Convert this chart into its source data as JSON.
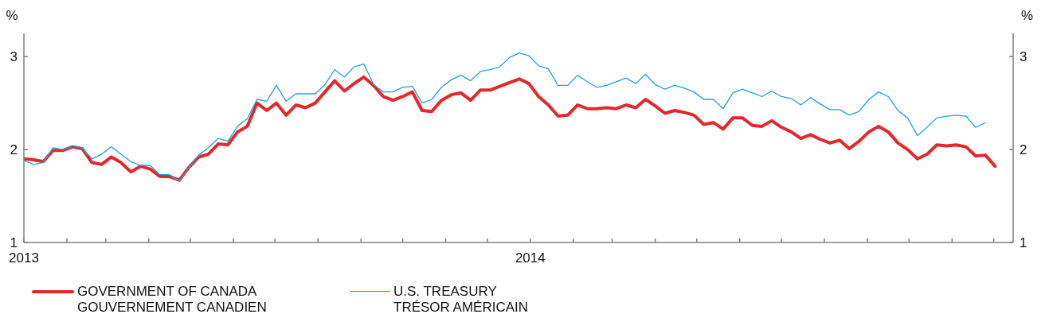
{
  "chart_data": {
    "type": "line",
    "ylabel": "%",
    "y2label": "%",
    "x": [
      "2013-01-01",
      "2013-01-08",
      "2013-01-15",
      "2013-01-22",
      "2013-01-29",
      "2013-02-05",
      "2013-02-12",
      "2013-02-19",
      "2013-02-26",
      "2013-03-05",
      "2013-03-12",
      "2013-03-19",
      "2013-03-26",
      "2013-04-02",
      "2013-04-09",
      "2013-04-16",
      "2013-04-23",
      "2013-04-30",
      "2013-05-07",
      "2013-05-14",
      "2013-05-21",
      "2013-05-28",
      "2013-06-04",
      "2013-06-11",
      "2013-06-18",
      "2013-06-25",
      "2013-07-02",
      "2013-07-09",
      "2013-07-16",
      "2013-07-23",
      "2013-07-30",
      "2013-08-06",
      "2013-08-13",
      "2013-08-20",
      "2013-08-27",
      "2013-09-03",
      "2013-09-10",
      "2013-09-17",
      "2013-09-24",
      "2013-10-01",
      "2013-10-08",
      "2013-10-15",
      "2013-10-22",
      "2013-10-29",
      "2013-11-05",
      "2013-11-12",
      "2013-11-19",
      "2013-11-26",
      "2013-12-03",
      "2013-12-10",
      "2013-12-17",
      "2013-12-24",
      "2013-12-31",
      "2014-01-07",
      "2014-01-14",
      "2014-01-21",
      "2014-01-28",
      "2014-02-04",
      "2014-02-11",
      "2014-02-18",
      "2014-02-25",
      "2014-03-04",
      "2014-03-11",
      "2014-03-18",
      "2014-03-25",
      "2014-04-01",
      "2014-04-08",
      "2014-04-15",
      "2014-04-22",
      "2014-04-29",
      "2014-05-06",
      "2014-05-13",
      "2014-05-20",
      "2014-05-27",
      "2014-06-03",
      "2014-06-10",
      "2014-06-17",
      "2014-06-24",
      "2014-07-01",
      "2014-07-08",
      "2014-07-15",
      "2014-07-22",
      "2014-07-29",
      "2014-08-05",
      "2014-08-12",
      "2014-08-19",
      "2014-08-26",
      "2014-09-02",
      "2014-09-09",
      "2014-09-16",
      "2014-09-23",
      "2014-09-30",
      "2014-10-07",
      "2014-10-14",
      "2014-10-21",
      "2014-10-28",
      "2014-11-04",
      "2014-11-11",
      "2014-11-18",
      "2014-11-25",
      "2014-12-02"
    ],
    "series": [
      {
        "name": "GOVERNMENT OF CANADA\nGOUVERNEMENT CANADIEN",
        "color": "#e3272b",
        "values": [
          1.9,
          1.89,
          1.87,
          1.99,
          1.99,
          2.03,
          2.01,
          1.86,
          1.84,
          1.92,
          1.86,
          1.76,
          1.82,
          1.79,
          1.71,
          1.71,
          1.67,
          1.81,
          1.92,
          1.95,
          2.06,
          2.05,
          2.19,
          2.25,
          2.5,
          2.42,
          2.5,
          2.37,
          2.48,
          2.45,
          2.5,
          2.62,
          2.74,
          2.63,
          2.71,
          2.78,
          2.69,
          2.57,
          2.53,
          2.57,
          2.62,
          2.42,
          2.41,
          2.53,
          2.59,
          2.61,
          2.53,
          2.64,
          2.64,
          2.68,
          2.72,
          2.76,
          2.71,
          2.57,
          2.48,
          2.36,
          2.37,
          2.48,
          2.44,
          2.44,
          2.45,
          2.44,
          2.48,
          2.45,
          2.54,
          2.47,
          2.39,
          2.42,
          2.4,
          2.37,
          2.27,
          2.29,
          2.22,
          2.34,
          2.34,
          2.26,
          2.25,
          2.31,
          2.24,
          2.19,
          2.12,
          2.16,
          2.11,
          2.07,
          2.1,
          2.01,
          2.09,
          2.19,
          2.25,
          2.19,
          2.07,
          2.0,
          1.9,
          1.95,
          2.05,
          2.04,
          2.05,
          2.03,
          1.93,
          1.94,
          1.82
        ]
      },
      {
        "name": "U.S. TREASURY\nTRÉSOR AMÉRICAIN",
        "color": "#1fa3df",
        "values": [
          1.88,
          1.84,
          1.86,
          2.02,
          2.0,
          2.04,
          2.02,
          1.9,
          1.95,
          2.03,
          1.95,
          1.87,
          1.83,
          1.83,
          1.73,
          1.73,
          1.66,
          1.81,
          1.94,
          2.02,
          2.12,
          2.09,
          2.25,
          2.33,
          2.54,
          2.52,
          2.69,
          2.52,
          2.6,
          2.6,
          2.6,
          2.7,
          2.86,
          2.78,
          2.89,
          2.92,
          2.7,
          2.62,
          2.62,
          2.67,
          2.68,
          2.5,
          2.54,
          2.67,
          2.75,
          2.8,
          2.74,
          2.84,
          2.86,
          2.89,
          2.99,
          3.04,
          3.01,
          2.9,
          2.87,
          2.69,
          2.69,
          2.8,
          2.73,
          2.67,
          2.69,
          2.73,
          2.77,
          2.71,
          2.81,
          2.7,
          2.65,
          2.69,
          2.66,
          2.62,
          2.54,
          2.54,
          2.44,
          2.61,
          2.65,
          2.61,
          2.57,
          2.63,
          2.57,
          2.55,
          2.48,
          2.56,
          2.49,
          2.43,
          2.43,
          2.37,
          2.41,
          2.54,
          2.62,
          2.57,
          2.42,
          2.34,
          2.15,
          2.24,
          2.34,
          2.36,
          2.37,
          2.36,
          2.24,
          2.29,
          null
        ]
      }
    ],
    "xlim": [
      "2013-01-01",
      "2014-12-15"
    ],
    "xticks": [
      {
        "value": "2013-01",
        "label": "2013"
      },
      {
        "value": "2013-02",
        "label": null
      },
      {
        "value": "2013-03",
        "label": null
      },
      {
        "value": "2013-04",
        "label": null
      },
      {
        "value": "2013-05",
        "label": null
      },
      {
        "value": "2013-06",
        "label": null
      },
      {
        "value": "2013-07",
        "label": null
      },
      {
        "value": "2013-08",
        "label": null
      },
      {
        "value": "2013-09",
        "label": null
      },
      {
        "value": "2013-10",
        "label": null
      },
      {
        "value": "2013-11",
        "label": null
      },
      {
        "value": "2013-12",
        "label": null
      },
      {
        "value": "2014-01",
        "label": "2014"
      },
      {
        "value": "2014-02",
        "label": null
      },
      {
        "value": "2014-03",
        "label": null
      },
      {
        "value": "2014-04",
        "label": null
      },
      {
        "value": "2014-05",
        "label": null
      },
      {
        "value": "2014-06",
        "label": null
      },
      {
        "value": "2014-07",
        "label": null
      },
      {
        "value": "2014-08",
        "label": null
      },
      {
        "value": "2014-09",
        "label": null
      },
      {
        "value": "2014-10",
        "label": null
      },
      {
        "value": "2014-11",
        "label": null
      },
      {
        "value": "2014-12",
        "label": null
      }
    ],
    "ylim": [
      1,
      3.25
    ],
    "yticks": [
      1,
      2,
      3
    ],
    "y2lim": [
      1,
      3.25
    ],
    "y2ticks": [
      1,
      2,
      3
    ],
    "legend": "bottom"
  }
}
